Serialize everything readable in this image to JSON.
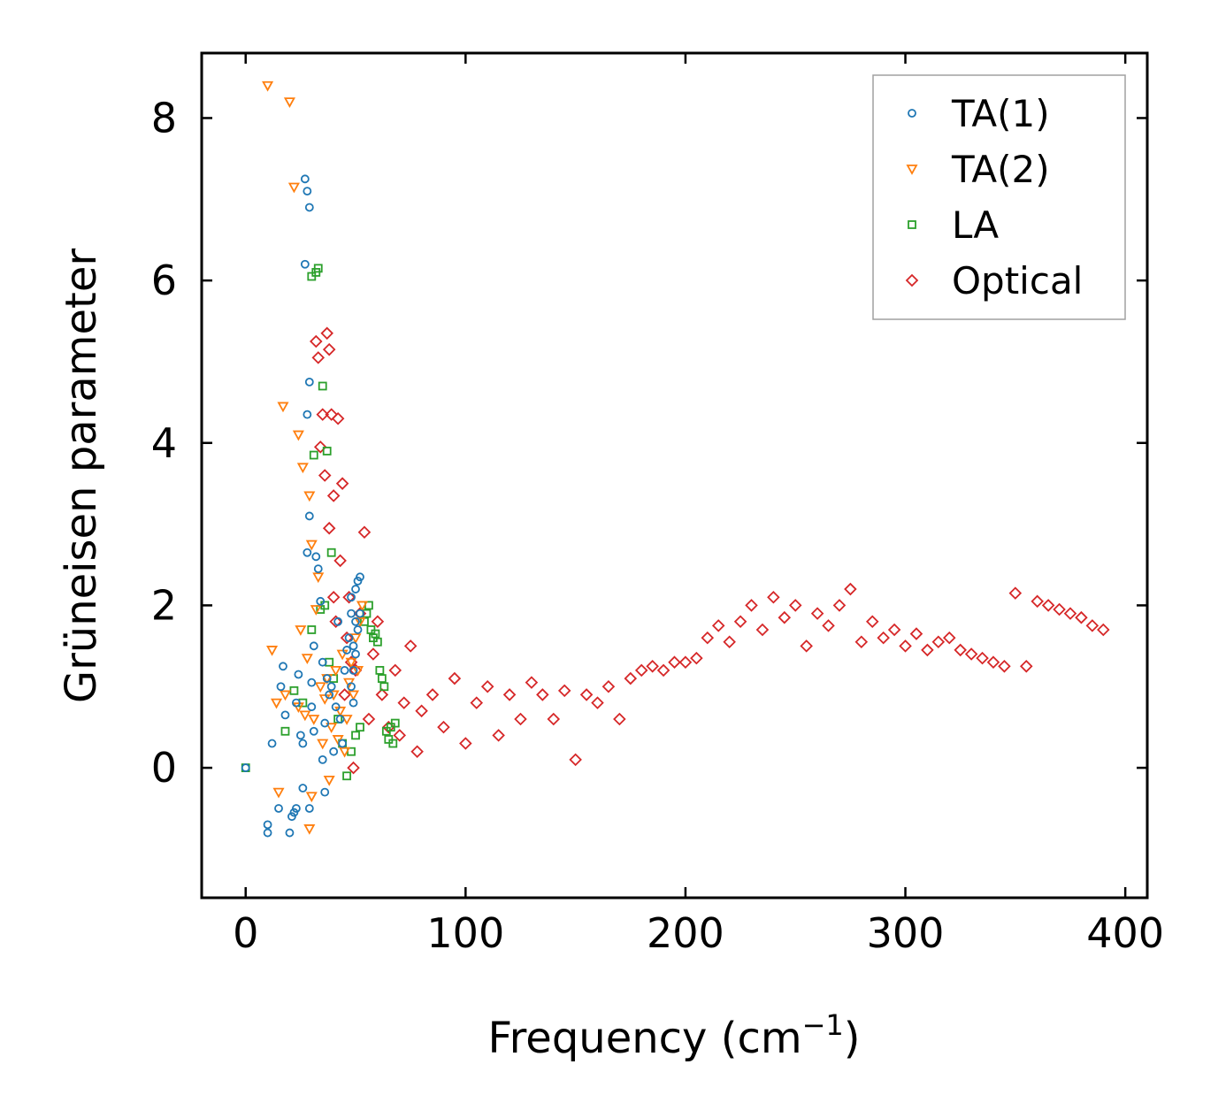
{
  "chart_data": {
    "type": "scatter",
    "title": "",
    "xlabel": "Frequency (cm",
    "xlabel_exponent": "−1",
    "xlabel_suffix": ")",
    "ylabel": "Grüneisen parameter",
    "xlim": [
      -20,
      410
    ],
    "ylim": [
      -1.6,
      8.8
    ],
    "xticks": [
      0,
      100,
      200,
      300,
      400
    ],
    "xtick_labels": [
      "0",
      "100",
      "200",
      "300",
      "400"
    ],
    "yticks": [
      0,
      2,
      4,
      6,
      8
    ],
    "ytick_labels": [
      "0",
      "2",
      "4",
      "6",
      "8"
    ],
    "grid": false,
    "legend_position": "top-right",
    "series": [
      {
        "name": "TA(1)",
        "marker": "circle",
        "color": "#1f77b4",
        "x": [
          0,
          10,
          10,
          12,
          15,
          16,
          17,
          18,
          20,
          21,
          22,
          23,
          23,
          24,
          25,
          26,
          26,
          27,
          27,
          28,
          28,
          28,
          29,
          29,
          29,
          29,
          30,
          30,
          31,
          31,
          32,
          33,
          34,
          35,
          35,
          36,
          36,
          37,
          38,
          39,
          40,
          41,
          42,
          43,
          44,
          45,
          46,
          47,
          48,
          48,
          49,
          49,
          50,
          50,
          51,
          51,
          52,
          52,
          48,
          49,
          50
        ],
        "y": [
          0.0,
          -0.8,
          -0.7,
          0.3,
          -0.5,
          1.0,
          1.25,
          0.65,
          -0.8,
          -0.6,
          -0.55,
          -0.5,
          0.8,
          1.15,
          0.4,
          -0.25,
          0.3,
          6.2,
          7.25,
          7.1,
          4.35,
          2.65,
          6.9,
          4.75,
          3.1,
          -0.5,
          1.05,
          0.75,
          1.5,
          0.45,
          2.6,
          2.45,
          2.05,
          1.3,
          0.1,
          0.55,
          -0.3,
          1.1,
          0.9,
          1.0,
          0.2,
          0.75,
          1.8,
          0.6,
          0.3,
          1.2,
          1.45,
          1.6,
          1.9,
          2.1,
          1.5,
          1.2,
          2.2,
          1.8,
          2.3,
          1.7,
          1.9,
          2.35,
          1.0,
          0.8,
          1.4
        ]
      },
      {
        "name": "TA(2)",
        "marker": "triangle-down",
        "color": "#ff7f0e",
        "x": [
          10,
          12,
          14,
          15,
          17,
          18,
          20,
          22,
          24,
          24,
          25,
          26,
          27,
          28,
          29,
          29,
          30,
          30,
          31,
          32,
          33,
          34,
          35,
          36,
          37,
          38,
          39,
          40,
          41,
          42,
          43,
          44,
          45,
          46,
          47,
          48,
          49,
          50,
          51,
          52,
          53
        ],
        "y": [
          8.4,
          1.45,
          0.8,
          -0.3,
          4.45,
          0.9,
          8.2,
          7.15,
          4.1,
          0.75,
          1.7,
          3.7,
          0.65,
          1.35,
          3.35,
          -0.75,
          2.75,
          -0.35,
          0.6,
          1.95,
          2.35,
          1.0,
          0.3,
          0.85,
          1.1,
          -0.15,
          0.5,
          0.9,
          1.2,
          0.35,
          0.7,
          1.4,
          0.2,
          0.6,
          1.05,
          1.3,
          0.9,
          1.6,
          1.2,
          1.8,
          2.0
        ]
      },
      {
        "name": "LA",
        "marker": "square",
        "color": "#2ca02c",
        "x": [
          0,
          18,
          22,
          26,
          30,
          30,
          31,
          32,
          33,
          34,
          35,
          36,
          37,
          38,
          39,
          40,
          42,
          44,
          46,
          48,
          50,
          52,
          54,
          55,
          56,
          57,
          58,
          59,
          60,
          61,
          62,
          63,
          64,
          65,
          66,
          67,
          68
        ],
        "y": [
          0.0,
          0.45,
          0.95,
          0.8,
          6.05,
          1.7,
          3.85,
          6.1,
          6.15,
          1.95,
          4.7,
          2.0,
          3.9,
          1.3,
          2.65,
          1.1,
          0.6,
          0.3,
          -0.1,
          0.2,
          0.4,
          0.5,
          1.8,
          1.9,
          2.0,
          1.7,
          1.6,
          1.65,
          1.55,
          1.2,
          1.1,
          1.0,
          0.45,
          0.35,
          0.5,
          0.3,
          0.55
        ]
      },
      {
        "name": "Optical",
        "marker": "diamond",
        "color": "#d62728",
        "x": [
          32,
          33,
          34,
          35,
          36,
          37,
          38,
          38,
          39,
          40,
          40,
          41,
          42,
          43,
          44,
          45,
          46,
          47,
          48,
          49,
          50,
          52,
          54,
          56,
          58,
          60,
          62,
          65,
          68,
          70,
          72,
          75,
          78,
          80,
          85,
          90,
          95,
          100,
          105,
          110,
          115,
          120,
          125,
          130,
          135,
          140,
          145,
          150,
          155,
          160,
          165,
          170,
          175,
          180,
          185,
          190,
          195,
          200,
          205,
          210,
          215,
          220,
          225,
          230,
          235,
          240,
          245,
          250,
          255,
          260,
          265,
          270,
          275,
          280,
          285,
          290,
          295,
          300,
          305,
          310,
          315,
          320,
          325,
          330,
          335,
          340,
          345,
          350,
          355,
          360,
          365,
          370,
          375,
          380,
          385,
          390
        ],
        "y": [
          5.25,
          5.05,
          3.95,
          4.35,
          3.6,
          5.35,
          5.15,
          2.95,
          4.35,
          3.35,
          2.1,
          1.8,
          4.3,
          2.55,
          3.5,
          0.9,
          1.6,
          2.1,
          1.3,
          0.0,
          1.2,
          1.9,
          2.9,
          0.6,
          1.4,
          1.8,
          0.9,
          0.5,
          1.2,
          0.4,
          0.8,
          1.5,
          0.2,
          0.7,
          0.9,
          0.5,
          1.1,
          0.3,
          0.8,
          1.0,
          0.4,
          0.9,
          0.6,
          1.05,
          0.9,
          0.6,
          0.95,
          0.1,
          0.9,
          0.8,
          1.0,
          0.6,
          1.1,
          1.2,
          1.25,
          1.2,
          1.3,
          1.3,
          1.35,
          1.6,
          1.75,
          1.55,
          1.8,
          2.0,
          1.7,
          2.1,
          1.85,
          2.0,
          1.5,
          1.9,
          1.75,
          2.0,
          2.2,
          1.55,
          1.8,
          1.6,
          1.7,
          1.5,
          1.65,
          1.45,
          1.55,
          1.6,
          1.45,
          1.4,
          1.35,
          1.3,
          1.25,
          2.15,
          1.25,
          2.05,
          2.0,
          1.95,
          1.9,
          1.85,
          1.75,
          1.7
        ]
      }
    ]
  }
}
